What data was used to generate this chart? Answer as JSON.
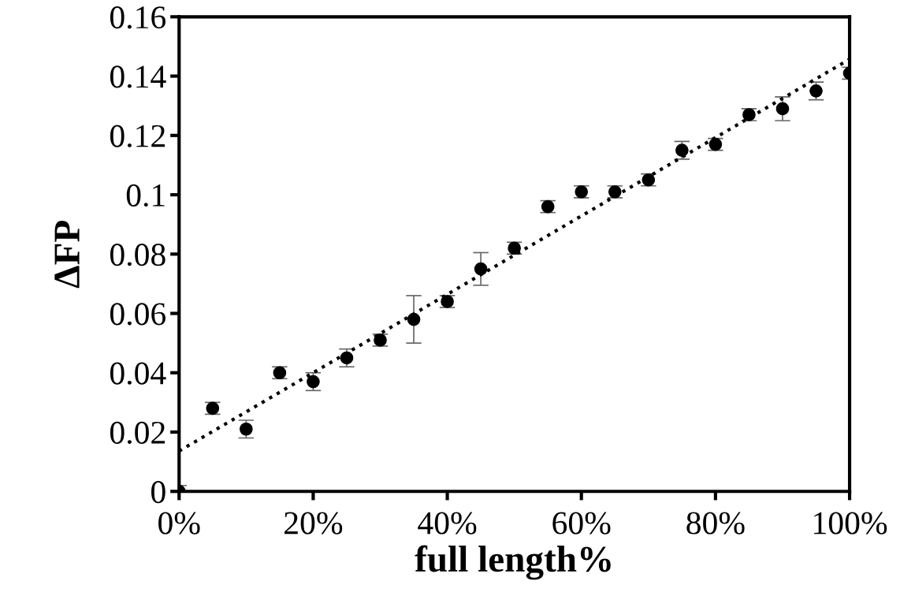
{
  "chart_data": {
    "type": "scatter",
    "xlabel": "full length%",
    "ylabel": "ΔFP",
    "x": [
      0,
      5,
      10,
      15,
      20,
      25,
      30,
      35,
      40,
      45,
      50,
      55,
      60,
      65,
      70,
      75,
      80,
      85,
      90,
      95,
      100
    ],
    "series": [
      {
        "color": "#000000",
        "values": [
          0.0,
          0.028,
          0.021,
          0.04,
          0.037,
          0.045,
          0.051,
          0.058,
          0.064,
          0.075,
          0.082,
          0.096,
          0.101,
          0.101,
          0.105,
          0.115,
          0.117,
          0.127,
          0.129,
          0.135,
          0.141
        ],
        "errors": [
          0.002,
          0.002,
          0.003,
          0.002,
          0.003,
          0.003,
          0.002,
          0.008,
          0.002,
          0.0055,
          0.002,
          0.002,
          0.002,
          0.002,
          0.002,
          0.003,
          0.002,
          0.002,
          0.004,
          0.003,
          0.002
        ],
        "marker": "circle"
      },
      {
        "type": "line",
        "color": "#000000",
        "x": [
          0,
          100
        ],
        "values": [
          0.0136,
          0.1457
        ],
        "line_style": "dotted"
      }
    ],
    "xlim": [
      0,
      100
    ],
    "xticks": [
      {
        "value": 0,
        "label": "0%"
      },
      {
        "value": 20,
        "label": "20%"
      },
      {
        "value": 40,
        "label": "40%"
      },
      {
        "value": 60,
        "label": "60%"
      },
      {
        "value": 80,
        "label": "80%"
      },
      {
        "value": 100,
        "label": "100%"
      }
    ],
    "ylim": [
      0,
      0.16
    ],
    "yticks": [
      0,
      {
        "value": 0.02,
        "label": "0.02"
      },
      {
        "value": 0.04,
        "label": "0.04"
      },
      {
        "value": 0.06,
        "label": "0.06"
      },
      {
        "value": 0.08,
        "label": "0.08"
      },
      {
        "value": 0.1,
        "label": "0.1"
      },
      {
        "value": 0.12,
        "label": "0.12"
      },
      {
        "value": 0.14,
        "label": "0.14"
      },
      {
        "value": 0.16,
        "label": "0.16"
      }
    ],
    "grid": false,
    "legend": false
  }
}
